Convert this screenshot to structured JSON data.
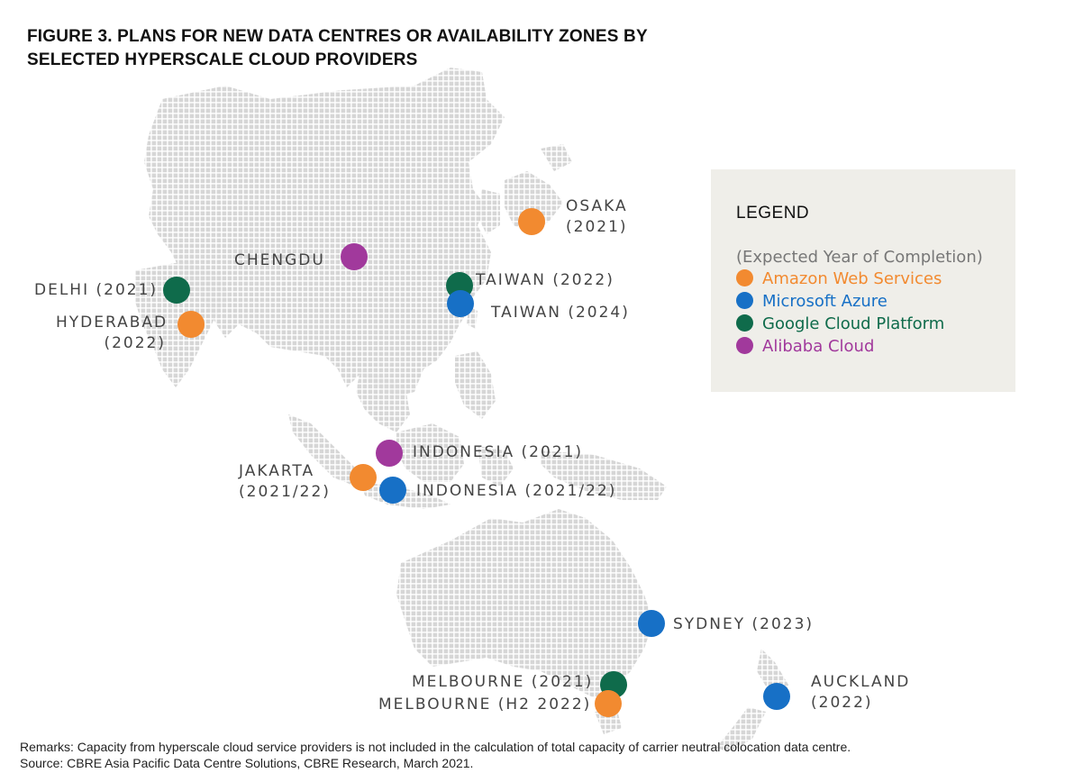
{
  "title": "FIGURE 3. PLANS FOR NEW DATA CENTRES OR AVAILABILITY ZONES BY SELECTED HYPERSCALE CLOUD PROVIDERS",
  "colors": {
    "aws": "#f28a30",
    "azure": "#1770c6",
    "gcp": "#0f6b4b",
    "alibaba": "#a1399c",
    "land": "#d9d9d9"
  },
  "legend": {
    "title": "LEGEND",
    "subtitle": "(Expected Year of Completion)",
    "items": [
      {
        "label": "Amazon Web Services",
        "color": "#f28a30"
      },
      {
        "label": "Microsoft Azure",
        "color": "#1770c6"
      },
      {
        "label": "Google Cloud Platform",
        "color": "#0f6b4b"
      },
      {
        "label": "Alibaba Cloud",
        "color": "#a1399c"
      }
    ]
  },
  "locations": {
    "osaka": {
      "line1": "OSAKA",
      "line2": "(2021)",
      "provider": "aws"
    },
    "chengdu": {
      "line1": "CHENGDU",
      "provider": "alibaba"
    },
    "delhi": {
      "line1": "DELHI (2021)",
      "provider": "gcp"
    },
    "hyderabad": {
      "line1": "HYDERABAD",
      "line2": "(2022)",
      "provider": "aws"
    },
    "taiwan_2022": {
      "line1": "TAIWAN (2022)",
      "provider": "gcp"
    },
    "taiwan_2024": {
      "line1": "TAIWAN (2024)",
      "provider": "azure"
    },
    "indonesia_2021": {
      "line1": "INDONESIA (2021)",
      "provider": "alibaba"
    },
    "jakarta": {
      "line1": "JAKARTA",
      "line2": "(2021/22)",
      "provider": "aws"
    },
    "indonesia_2021_22": {
      "line1": "INDONESIA (2021/22)",
      "provider": "azure"
    },
    "sydney": {
      "line1": "SYDNEY (2023)",
      "provider": "azure"
    },
    "melbourne_2021": {
      "line1": "MELBOURNE (2021)",
      "provider": "gcp"
    },
    "melbourne_h2_2022": {
      "line1": "MELBOURNE (H2 2022)",
      "provider": "aws"
    },
    "auckland": {
      "line1": "AUCKLAND",
      "line2": "(2022)",
      "provider": "azure"
    }
  },
  "remarks": {
    "line1": "Remarks: Capacity from hyperscale cloud service providers is not included in the calculation of total capacity of carrier neutral colocation data centre.",
    "line2": "Source: CBRE Asia Pacific Data Centre Solutions, CBRE Research, March 2021."
  }
}
